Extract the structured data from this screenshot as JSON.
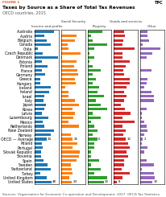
{
  "title": "Taxes by Source as a Share of Total Tax Revenues",
  "subtitle": "OECD countries, 2015",
  "annotations": [
    "FIGURE 1",
    "TPC",
    "Sources: Organisation for Economic Co-operation and Development. 2017. OECD Tax Statistics."
  ],
  "chart_data": [
    {
      "type": "bar",
      "orientation": "horizontal",
      "data_labels": true,
      "tick_labels": "y",
      "title": "Income and profits",
      "categories": [
        "Australia",
        "Austria",
        "Belgium",
        "Canada",
        "Chile",
        "Czech Republic",
        "Denmark",
        "Estonia",
        "Finland",
        "France",
        "Germany",
        "Greece",
        "Hungary",
        "Iceland",
        "Ireland",
        "Israel",
        "Italy",
        "Japan",
        "Korea",
        "Latvia",
        "Luxembourg",
        "Mexico",
        "Netherlands",
        "New Zealand",
        "Norway",
        "OECD — Average",
        "Poland",
        "Portugal",
        "Slovak Republic",
        "Slovenia",
        "Spain",
        "Sweden",
        "Switzerland",
        "Turkey",
        "United Kingdom",
        "United States"
      ],
      "values": [
        57,
        28,
        34,
        47,
        8,
        23,
        67,
        21,
        37,
        20,
        31,
        16,
        17,
        47,
        41,
        27,
        26,
        32,
        27,
        21,
        39,
        22,
        27,
        57,
        46,
        34,
        20,
        22,
        19,
        19,
        25,
        36,
        46,
        17,
        35,
        48
      ],
      "value_labels": [
        null,
        null,
        null,
        null,
        null,
        null,
        null,
        null,
        null,
        null,
        null,
        null,
        null,
        null,
        null,
        null,
        null,
        null,
        null,
        null,
        null,
        null,
        null,
        null,
        null,
        "34",
        null,
        null,
        null,
        null,
        null,
        null,
        null,
        null,
        null,
        "48"
      ],
      "xlim": [
        0,
        70
      ]
    },
    {
      "type": "bar",
      "orientation": "horizontal",
      "data_labels": true,
      "tick_labels": false,
      "title": "Social Security",
      "categories": [
        "Australia",
        "Austria",
        "Belgium",
        "Canada",
        "Chile",
        "Czech Republic",
        "Denmark",
        "Estonia",
        "Finland",
        "France",
        "Germany",
        "Greece",
        "Hungary",
        "Iceland",
        "Ireland",
        "Israel",
        "Italy",
        "Japan",
        "Korea",
        "Latvia",
        "Luxembourg",
        "Mexico",
        "Netherlands",
        "New Zealand",
        "Norway",
        "OECD — Average",
        "Poland",
        "Portugal",
        "Slovak Republic",
        "Slovenia",
        "Spain",
        "Sweden",
        "Switzerland",
        "Turkey",
        "United Kingdom",
        "United States"
      ],
      "values": [
        0,
        35,
        31,
        15,
        16,
        44,
        2,
        36,
        29,
        37,
        39,
        31,
        33,
        9,
        16,
        17,
        31,
        41,
        26,
        31,
        28,
        17,
        40,
        0,
        22,
        26,
        37,
        26,
        43,
        41,
        35,
        23,
        24,
        26,
        19,
        24
      ],
      "value_labels": [
        null,
        null,
        null,
        null,
        null,
        null,
        null,
        null,
        null,
        null,
        null,
        null,
        null,
        null,
        null,
        null,
        null,
        null,
        null,
        null,
        null,
        null,
        null,
        null,
        null,
        "26",
        null,
        null,
        null,
        null,
        null,
        null,
        null,
        null,
        null,
        "24"
      ],
      "xlim": [
        0,
        55
      ]
    },
    {
      "type": "bar",
      "orientation": "horizontal",
      "data_labels": true,
      "tick_labels": false,
      "title": "Property",
      "categories": [
        "Australia",
        "Austria",
        "Belgium",
        "Canada",
        "Chile",
        "Czech Republic",
        "Denmark",
        "Estonia",
        "Finland",
        "France",
        "Germany",
        "Greece",
        "Hungary",
        "Iceland",
        "Ireland",
        "Israel",
        "Italy",
        "Japan",
        "Korea",
        "Latvia",
        "Luxembourg",
        "Mexico",
        "Netherlands",
        "New Zealand",
        "Norway",
        "OECD — Average",
        "Poland",
        "Portugal",
        "Slovak Republic",
        "Slovenia",
        "Spain",
        "Sweden",
        "Switzerland",
        "Turkey",
        "United Kingdom",
        "United States"
      ],
      "values": [
        9,
        2,
        3,
        12,
        4,
        1,
        4,
        1,
        3,
        8,
        3,
        5,
        3,
        7,
        6,
        10,
        5,
        8,
        12,
        3,
        8,
        2,
        4,
        6,
        3,
        6,
        4,
        4,
        2,
        2,
        7,
        2,
        8,
        4,
        12,
        10
      ],
      "value_labels": [
        null,
        null,
        null,
        null,
        null,
        null,
        null,
        null,
        null,
        null,
        null,
        null,
        null,
        null,
        null,
        null,
        null,
        null,
        null,
        null,
        null,
        null,
        null,
        null,
        null,
        "6",
        null,
        null,
        null,
        null,
        null,
        null,
        null,
        null,
        null,
        "10"
      ],
      "xlim": [
        0,
        15
      ]
    },
    {
      "type": "bar",
      "orientation": "horizontal",
      "data_labels": true,
      "tick_labels": false,
      "title": "Goods and services",
      "categories": [
        "Australia",
        "Austria",
        "Belgium",
        "Canada",
        "Chile",
        "Czech Republic",
        "Denmark",
        "Estonia",
        "Finland",
        "France",
        "Germany",
        "Greece",
        "Hungary",
        "Iceland",
        "Ireland",
        "Israel",
        "Italy",
        "Japan",
        "Korea",
        "Latvia",
        "Luxembourg",
        "Mexico",
        "Netherlands",
        "New Zealand",
        "Norway",
        "OECD — Average",
        "Poland",
        "Portugal",
        "Slovak Republic",
        "Slovenia",
        "Spain",
        "Sweden",
        "Switzerland",
        "Turkey",
        "United Kingdom",
        "United States"
      ],
      "values": [
        28,
        29,
        25,
        24,
        55,
        22,
        22,
        42,
        31,
        26,
        27,
        42,
        42,
        34,
        28,
        35,
        27,
        19,
        30,
        44,
        24,
        56,
        24,
        31,
        26,
        32,
        38,
        42,
        33,
        39,
        28,
        28,
        21,
        42,
        22,
        8
      ],
      "value_labels": [
        null,
        null,
        null,
        null,
        null,
        null,
        null,
        null,
        null,
        null,
        null,
        null,
        null,
        null,
        null,
        null,
        null,
        null,
        null,
        null,
        null,
        null,
        null,
        null,
        null,
        "32",
        null,
        null,
        null,
        null,
        null,
        null,
        null,
        null,
        null,
        "8"
      ],
      "xlim": [
        0,
        65
      ]
    },
    {
      "type": "bar",
      "orientation": "horizontal",
      "data_labels": true,
      "tick_labels": false,
      "title": "Other",
      "categories": [
        "Australia",
        "Austria",
        "Belgium",
        "Canada",
        "Chile",
        "Czech Republic",
        "Denmark",
        "Estonia",
        "Finland",
        "France",
        "Germany",
        "Greece",
        "Hungary",
        "Iceland",
        "Ireland",
        "Israel",
        "Italy",
        "Japan",
        "Korea",
        "Latvia",
        "Luxembourg",
        "Mexico",
        "Netherlands",
        "New Zealand",
        "Norway",
        "OECD — Average",
        "Poland",
        "Portugal",
        "Slovak Republic",
        "Slovenia",
        "Spain",
        "Sweden",
        "Switzerland",
        "Turkey",
        "United Kingdom",
        "United States"
      ],
      "values": [
        6,
        6,
        7,
        2,
        17,
        10,
        5,
        0,
        0,
        9,
        0,
        6,
        5,
        3,
        9,
        11,
        11,
        0,
        5,
        1,
        1,
        3,
        5,
        6,
        3,
        2,
        1,
        6,
        3,
        0,
        5,
        11,
        1,
        11,
        12,
        10
      ],
      "value_labels": [
        null,
        null,
        null,
        null,
        null,
        null,
        null,
        null,
        null,
        null,
        null,
        null,
        null,
        null,
        null,
        null,
        null,
        null,
        null,
        null,
        null,
        null,
        null,
        null,
        null,
        "2",
        null,
        null,
        null,
        null,
        null,
        null,
        null,
        null,
        null,
        "10"
      ],
      "xlim": [
        0,
        20
      ]
    }
  ]
}
